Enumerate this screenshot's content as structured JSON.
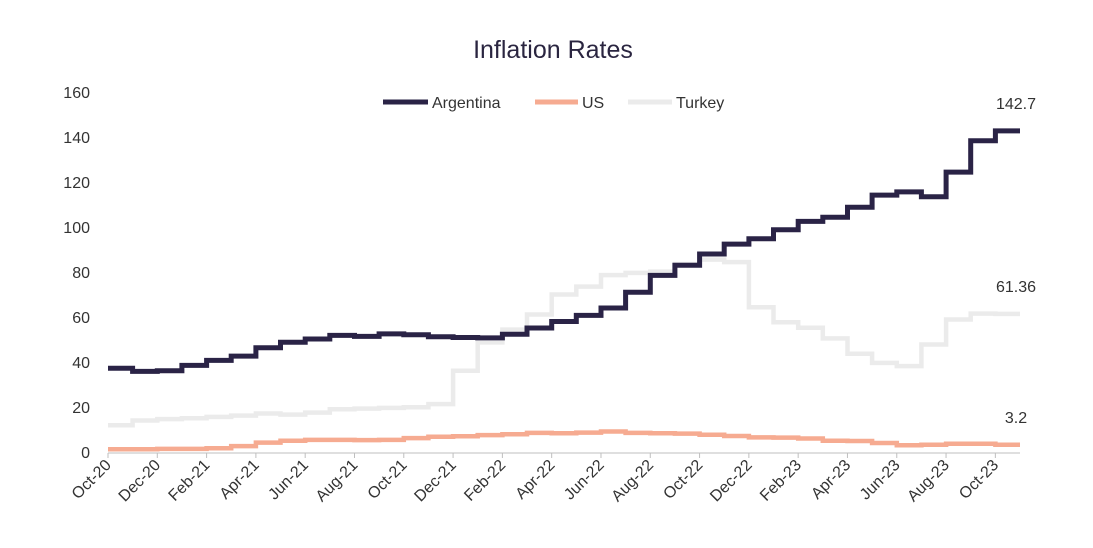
{
  "chart_data": {
    "type": "line",
    "title": "Inflation Rates",
    "xlabel": "",
    "ylabel": "",
    "ylim": [
      0,
      160
    ],
    "yticks": [
      0,
      20,
      40,
      60,
      80,
      100,
      120,
      140,
      160
    ],
    "x_tick_labels": [
      "Oct-20",
      "Dec-20",
      "Feb-21",
      "Apr-21",
      "Jun-21",
      "Aug-21",
      "Oct-21",
      "Dec-21",
      "Feb-22",
      "Apr-22",
      "Jun-22",
      "Aug-22",
      "Oct-22",
      "Dec-22",
      "Feb-23",
      "Apr-23",
      "Jun-23",
      "Aug-23",
      "Oct-23"
    ],
    "x": [
      "Oct-20",
      "Nov-20",
      "Dec-20",
      "Jan-21",
      "Feb-21",
      "Mar-21",
      "Apr-21",
      "May-21",
      "Jun-21",
      "Jul-21",
      "Aug-21",
      "Sep-21",
      "Oct-21",
      "Nov-21",
      "Dec-21",
      "Jan-22",
      "Feb-22",
      "Mar-22",
      "Apr-22",
      "May-22",
      "Jun-22",
      "Jul-22",
      "Aug-22",
      "Sep-22",
      "Oct-22",
      "Nov-22",
      "Dec-22",
      "Jan-23",
      "Feb-23",
      "Mar-23",
      "Apr-23",
      "May-23",
      "Jun-23",
      "Jul-23",
      "Aug-23",
      "Sep-23",
      "Oct-23",
      "Nov-23"
    ],
    "series": [
      {
        "name": "Argentina",
        "color": "#2a2346",
        "values": [
          37.2,
          35.8,
          36.1,
          38.5,
          40.7,
          42.6,
          46.3,
          48.8,
          50.2,
          51.8,
          51.4,
          52.5,
          52.1,
          51.2,
          50.9,
          50.7,
          52.3,
          55.1,
          58.0,
          60.7,
          64.0,
          71.0,
          78.5,
          83.0,
          88.0,
          92.4,
          94.8,
          98.8,
          102.5,
          104.3,
          108.8,
          114.2,
          115.6,
          113.4,
          124.4,
          138.3,
          142.7,
          142.7
        ],
        "end_label": "142.7"
      },
      {
        "name": "US",
        "color": "#f6ab91",
        "values": [
          1.2,
          1.2,
          1.4,
          1.4,
          1.7,
          2.6,
          4.2,
          5.0,
          5.4,
          5.4,
          5.3,
          5.4,
          6.2,
          6.8,
          7.0,
          7.5,
          7.9,
          8.5,
          8.3,
          8.6,
          9.1,
          8.5,
          8.3,
          8.2,
          7.7,
          7.1,
          6.5,
          6.4,
          6.0,
          5.0,
          4.9,
          4.0,
          3.0,
          3.2,
          3.7,
          3.7,
          3.2,
          3.2
        ],
        "end_label": "3.2"
      },
      {
        "name": "Turkey",
        "color": "#ebebeb",
        "values": [
          11.9,
          14.0,
          14.6,
          15.0,
          15.6,
          16.2,
          17.1,
          16.6,
          17.5,
          19.0,
          19.3,
          19.6,
          19.9,
          21.3,
          36.1,
          48.7,
          54.4,
          61.1,
          70.0,
          73.5,
          78.6,
          79.6,
          80.2,
          83.5,
          85.5,
          84.4,
          64.3,
          57.7,
          55.2,
          50.5,
          43.7,
          39.6,
          38.2,
          47.8,
          58.9,
          61.5,
          61.36,
          61.36
        ],
        "end_label": "61.36"
      }
    ],
    "legend_position": "top-center",
    "grid": false
  }
}
